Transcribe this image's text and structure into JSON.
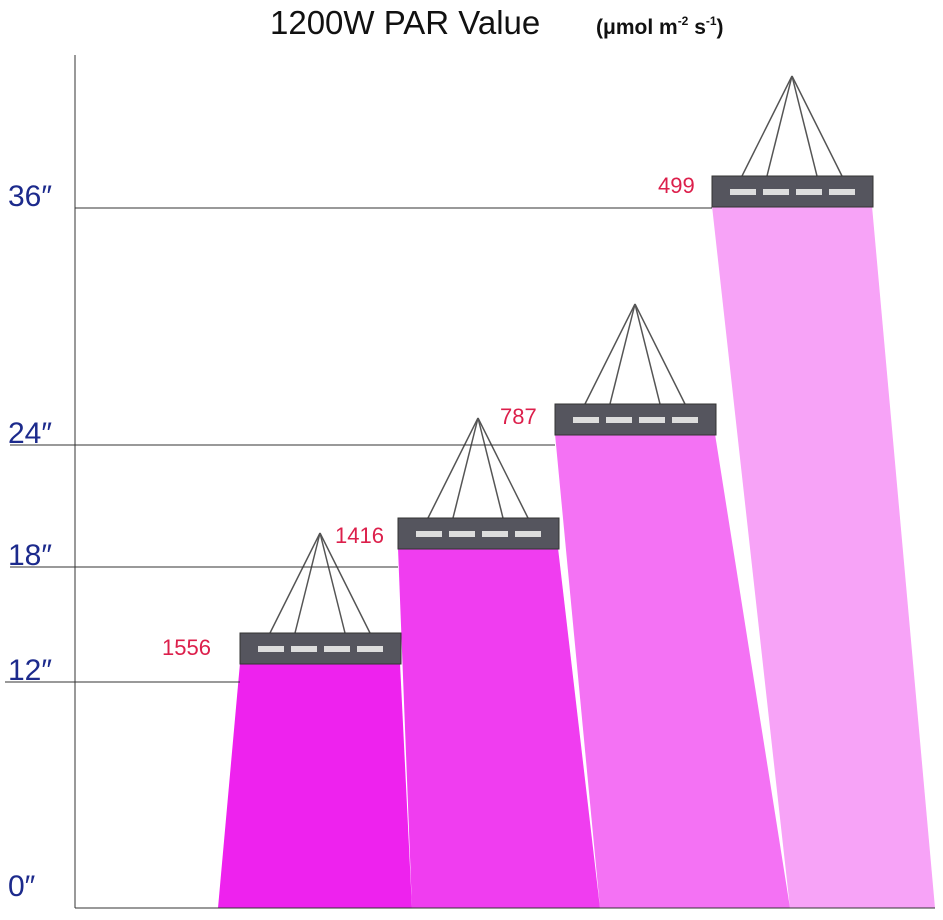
{
  "title": "1200W PAR Value",
  "unit": {
    "base": "(μmol m",
    "exp1": "-2",
    "mid": " s",
    "exp2": "-1",
    "close": ")"
  },
  "heights": [
    "36″",
    "24″",
    "18″",
    "12″",
    "0″"
  ],
  "readings": [
    "1556",
    "1416",
    "787",
    "499"
  ]
}
